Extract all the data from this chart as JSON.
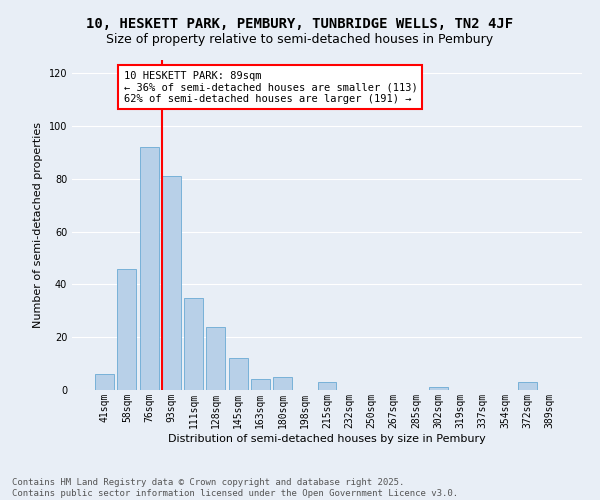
{
  "title": "10, HESKETT PARK, PEMBURY, TUNBRIDGE WELLS, TN2 4JF",
  "subtitle": "Size of property relative to semi-detached houses in Pembury",
  "xlabel": "Distribution of semi-detached houses by size in Pembury",
  "ylabel": "Number of semi-detached properties",
  "bar_labels": [
    "41sqm",
    "58sqm",
    "76sqm",
    "93sqm",
    "111sqm",
    "128sqm",
    "145sqm",
    "163sqm",
    "180sqm",
    "198sqm",
    "215sqm",
    "232sqm",
    "250sqm",
    "267sqm",
    "285sqm",
    "302sqm",
    "319sqm",
    "337sqm",
    "354sqm",
    "372sqm",
    "389sqm"
  ],
  "bar_values": [
    6,
    46,
    92,
    81,
    35,
    24,
    12,
    4,
    5,
    0,
    3,
    0,
    0,
    0,
    0,
    1,
    0,
    0,
    0,
    3,
    0
  ],
  "bar_color": "#b8d0e8",
  "bar_edge_color": "#6aaad4",
  "vline_color": "red",
  "annotation_text": "10 HESKETT PARK: 89sqm\n← 36% of semi-detached houses are smaller (113)\n62% of semi-detached houses are larger (191) →",
  "annotation_box_color": "white",
  "annotation_box_edge": "red",
  "ylim": [
    0,
    125
  ],
  "yticks": [
    0,
    20,
    40,
    60,
    80,
    100,
    120
  ],
  "background_color": "#e8eef6",
  "footer_line1": "Contains HM Land Registry data © Crown copyright and database right 2025.",
  "footer_line2": "Contains public sector information licensed under the Open Government Licence v3.0.",
  "grid_color": "white",
  "title_fontsize": 10,
  "subtitle_fontsize": 9,
  "axis_label_fontsize": 8,
  "tick_fontsize": 7,
  "footer_fontsize": 6.5,
  "annotation_fontsize": 7.5
}
